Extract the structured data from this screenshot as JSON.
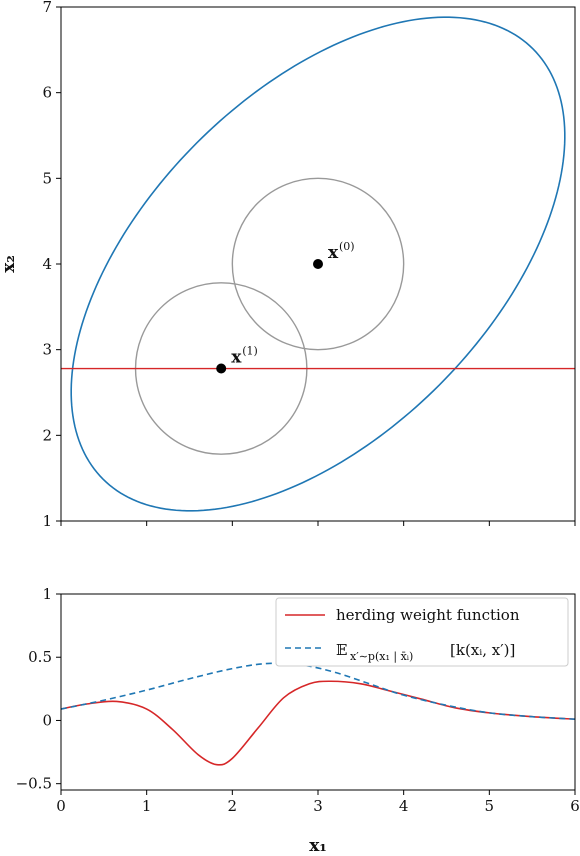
{
  "chart_data": [
    {
      "type": "scatter",
      "xlabel": "",
      "ylabel": "x₂",
      "xlim": [
        0,
        6
      ],
      "ylim": [
        1,
        7
      ],
      "xticks": [
        0,
        1,
        2,
        3,
        4,
        5,
        6
      ],
      "yticks": [
        1,
        2,
        3,
        4,
        5,
        6,
        7
      ],
      "ytick_labels": [
        "1",
        "2",
        "3",
        "4",
        "5",
        "6",
        "7"
      ],
      "points": [
        {
          "name": "x",
          "sup": "(0)",
          "x": 3.0,
          "y": 4.0
        },
        {
          "name": "x",
          "sup": "(1)",
          "x": 1.87,
          "y": 2.78
        }
      ],
      "circles": [
        {
          "cx": 3.0,
          "cy": 4.0,
          "r": 1.0,
          "color": "#999999"
        },
        {
          "cx": 1.87,
          "cy": 2.78,
          "r": 1.0,
          "color": "#999999"
        }
      ],
      "ellipse": {
        "cx": 3.0,
        "cy": 4.0,
        "semi_major": 3.55,
        "semi_minor": 2.0,
        "angle_deg": 45,
        "color": "#1f77b4"
      },
      "hline": {
        "y": 2.78,
        "color": "#d62728"
      },
      "grid": false
    },
    {
      "type": "line",
      "xlabel": "x₁",
      "ylabel": "",
      "xlim": [
        0,
        6
      ],
      "ylim": [
        -0.55,
        1.0
      ],
      "xticks": [
        0,
        1,
        2,
        3,
        4,
        5,
        6
      ],
      "xtick_labels": [
        "0",
        "1",
        "2",
        "3",
        "4",
        "5",
        "6"
      ],
      "yticks": [
        -0.5,
        0,
        0.5,
        1
      ],
      "ytick_labels": [
        "−0.5",
        "0",
        "0.5",
        "1"
      ],
      "legend_position": "top-right",
      "series": [
        {
          "name": "herding weight function",
          "color": "#d62728",
          "style": "solid",
          "x": [
            0,
            0.3,
            0.65,
            1.0,
            1.3,
            1.6,
            1.82,
            2.0,
            2.3,
            2.6,
            2.9,
            3.15,
            3.5,
            3.8,
            4.2,
            4.6,
            5.0,
            5.5,
            6.0
          ],
          "y": [
            0.09,
            0.13,
            0.15,
            0.09,
            -0.07,
            -0.27,
            -0.35,
            -0.3,
            -0.06,
            0.18,
            0.29,
            0.31,
            0.29,
            0.24,
            0.17,
            0.1,
            0.06,
            0.03,
            0.01
          ]
        },
        {
          "name": "E_{x'~p(x₁|x̄ᵢ)}[k(xᵢ, x')]",
          "color": "#1f77b4",
          "style": "dashed",
          "x": [
            0,
            0.5,
            1.0,
            1.5,
            2.0,
            2.4,
            2.8,
            3.2,
            3.6,
            4.0,
            4.5,
            5.0,
            5.5,
            6.0
          ],
          "y": [
            0.09,
            0.16,
            0.24,
            0.33,
            0.41,
            0.45,
            0.44,
            0.38,
            0.29,
            0.2,
            0.12,
            0.06,
            0.03,
            0.01
          ]
        }
      ],
      "legend": [
        {
          "text": "herding weight function"
        },
        {
          "text": "𝔼",
          "sub": "x′∼p(x₁ | x̄ᵢ)",
          "rest": "[k(xᵢ, x′)]"
        }
      ],
      "grid": false
    }
  ]
}
